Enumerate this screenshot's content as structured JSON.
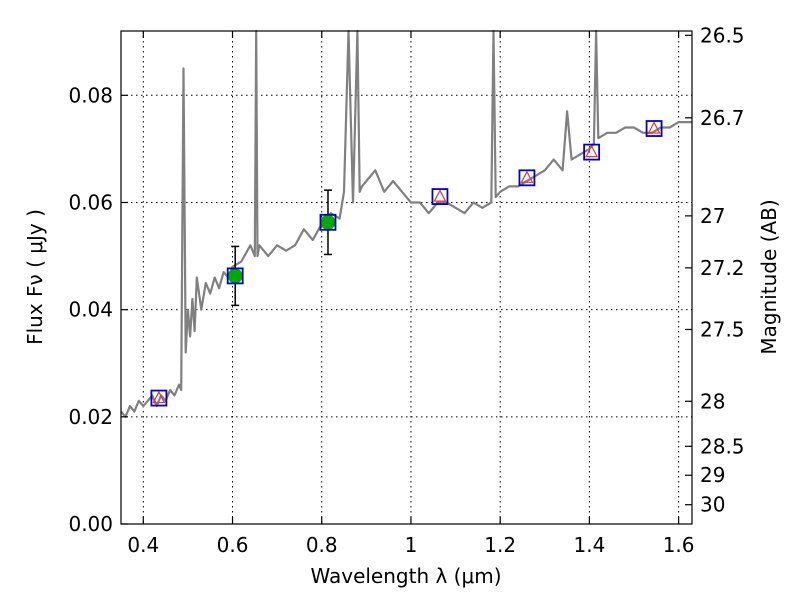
{
  "chart_data": {
    "type": "scatter",
    "title": "",
    "xlabel": "Wavelength  λ (μm)",
    "ylabel": "Flux  Fν  ( μJy )",
    "ylabel_right": "Magnitude (AB)",
    "xlim": [
      0.35,
      1.63
    ],
    "ylim": [
      0.0,
      0.092
    ],
    "x_ticks": [
      0.4,
      0.6,
      0.8,
      1.0,
      1.2,
      1.4,
      1.6
    ],
    "x_tick_labels": [
      "0.4",
      "0.6",
      "0.8",
      "1",
      "1.2",
      "1.4",
      "1.6"
    ],
    "y_ticks": [
      0.0,
      0.02,
      0.04,
      0.06,
      0.08
    ],
    "y_tick_labels": [
      "0.00",
      "0.02",
      "0.04",
      "0.06",
      "0.08"
    ],
    "right_ticks": [
      {
        "flux": 0.0912,
        "label": "26.5"
      },
      {
        "flux": 0.0758,
        "label": "26.7"
      },
      {
        "flux": 0.0575,
        "label": "27"
      },
      {
        "flux": 0.0478,
        "label": "27.2"
      },
      {
        "flux": 0.0363,
        "label": "27.5"
      },
      {
        "flux": 0.0229,
        "label": "28"
      },
      {
        "flux": 0.0145,
        "label": "28.5"
      },
      {
        "flux": 0.0091,
        "label": "29"
      },
      {
        "flux": 0.0036,
        "label": "30"
      }
    ],
    "grid": true,
    "colors": {
      "spectrum": "#808080",
      "observed": "#00aa00",
      "box": "#0000cc",
      "model": "#ee3333",
      "errorbar": "#000000"
    },
    "spectrum": {
      "x": [
        0.35,
        0.36,
        0.37,
        0.38,
        0.39,
        0.4,
        0.41,
        0.42,
        0.43,
        0.44,
        0.45,
        0.46,
        0.47,
        0.48,
        0.485,
        0.49,
        0.495,
        0.5,
        0.505,
        0.51,
        0.515,
        0.52,
        0.53,
        0.54,
        0.55,
        0.56,
        0.57,
        0.58,
        0.59,
        0.6,
        0.62,
        0.64,
        0.65,
        0.653,
        0.656,
        0.66,
        0.67,
        0.68,
        0.7,
        0.72,
        0.74,
        0.76,
        0.78,
        0.8,
        0.82,
        0.84,
        0.85,
        0.86,
        0.87,
        0.88,
        0.885,
        0.89,
        0.9,
        0.92,
        0.94,
        0.96,
        0.98,
        1.0,
        1.02,
        1.04,
        1.06,
        1.08,
        1.1,
        1.12,
        1.14,
        1.16,
        1.18,
        1.185,
        1.19,
        1.2,
        1.22,
        1.24,
        1.26,
        1.28,
        1.3,
        1.32,
        1.34,
        1.35,
        1.36,
        1.38,
        1.4,
        1.41,
        1.415,
        1.42,
        1.44,
        1.46,
        1.48,
        1.5,
        1.52,
        1.54,
        1.56,
        1.58,
        1.6,
        1.63
      ],
      "y": [
        0.021,
        0.02,
        0.022,
        0.021,
        0.023,
        0.022,
        0.023,
        0.024,
        0.022,
        0.024,
        0.023,
        0.025,
        0.024,
        0.026,
        0.025,
        0.085,
        0.032,
        0.04,
        0.035,
        0.042,
        0.036,
        0.046,
        0.04,
        0.045,
        0.043,
        0.046,
        0.044,
        0.047,
        0.046,
        0.048,
        0.049,
        0.052,
        0.05,
        0.092,
        0.05,
        0.052,
        0.051,
        0.05,
        0.052,
        0.051,
        0.052,
        0.055,
        0.053,
        0.056,
        0.058,
        0.057,
        0.062,
        0.092,
        0.06,
        0.092,
        0.062,
        0.063,
        0.064,
        0.066,
        0.062,
        0.064,
        0.062,
        0.06,
        0.06,
        0.058,
        0.06,
        0.06,
        0.059,
        0.058,
        0.06,
        0.059,
        0.06,
        0.092,
        0.061,
        0.062,
        0.063,
        0.063,
        0.064,
        0.065,
        0.066,
        0.068,
        0.066,
        0.077,
        0.068,
        0.069,
        0.07,
        0.071,
        0.092,
        0.072,
        0.073,
        0.073,
        0.074,
        0.074,
        0.073,
        0.073,
        0.074,
        0.074,
        0.075,
        0.075
      ]
    },
    "photometry": [
      {
        "x": 0.435,
        "model": 0.0235,
        "observed": null,
        "err": null
      },
      {
        "x": 0.606,
        "model": 0.0463,
        "observed": 0.0463,
        "err": 0.0055
      },
      {
        "x": 0.814,
        "model": 0.0563,
        "observed": 0.0563,
        "err": 0.006
      },
      {
        "x": 1.065,
        "model": 0.0611,
        "observed": null,
        "err": null
      },
      {
        "x": 1.26,
        "model": 0.0646,
        "observed": null,
        "err": null
      },
      {
        "x": 1.405,
        "model": 0.0694,
        "observed": null,
        "err": null
      },
      {
        "x": 1.545,
        "model": 0.0738,
        "observed": null,
        "err": null
      }
    ]
  }
}
